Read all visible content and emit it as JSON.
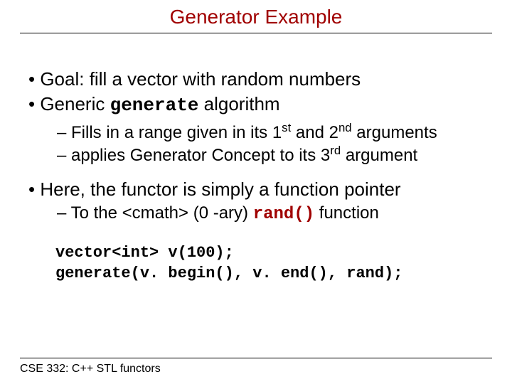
{
  "title": "Generator Example",
  "title_color": "#a00000",
  "bullets": {
    "b1": "Goal: fill a vector with random numbers",
    "b2_pre": "Generic ",
    "b2_code": "generate",
    "b2_post": " algorithm",
    "b3_pre": "Fills in a range given in its 1",
    "b3_sup1": "st",
    "b3_mid": " and 2",
    "b3_sup2": "nd",
    "b3_post": " arguments",
    "b4_pre": "applies Generator Concept to its 3",
    "b4_sup": "rd",
    "b4_post": " argument",
    "b5": "Here, the functor is simply a function pointer",
    "b6_pre": "To the <cmath> (0 -ary) ",
    "b6_code": "rand()",
    "b6_post": " function"
  },
  "code": {
    "line1": "vector<int> v(100);",
    "line2": "generate(v. begin(), v. end(), rand);"
  },
  "footer": "CSE 332: C++ STL functors",
  "colors": {
    "text": "#000000",
    "accent": "#a00000",
    "background": "#ffffff"
  },
  "fonts": {
    "body": "Arial",
    "mono": "Courier New",
    "title_size": 28,
    "l1_size": 26,
    "l2_size": 24,
    "code_size": 22,
    "footer_size": 16
  }
}
